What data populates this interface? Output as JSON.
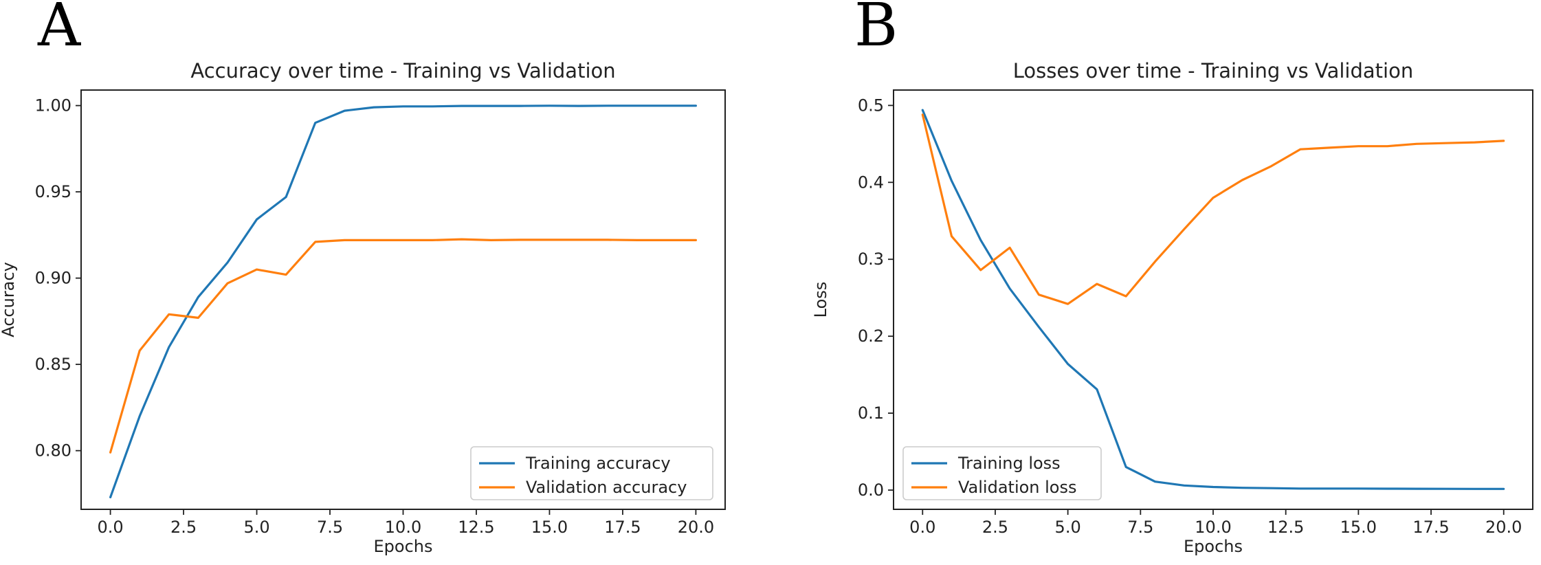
{
  "panels": [
    "A",
    "B"
  ],
  "chart_data": [
    {
      "type": "line",
      "title": "Accuracy over time - Training vs Validation",
      "xlabel": "Epochs",
      "ylabel": "Accuracy",
      "xlim": [
        -1,
        21
      ],
      "ylim": [
        0.766,
        1.009
      ],
      "xticks": [
        0,
        2.5,
        5,
        7.5,
        10,
        12.5,
        15,
        17.5,
        20
      ],
      "xtick_labels": [
        "0.0",
        "2.5",
        "5.0",
        "7.5",
        "10.0",
        "12.5",
        "15.0",
        "17.5",
        "20.0"
      ],
      "yticks": [
        0.8,
        0.85,
        0.9,
        0.95,
        1.0
      ],
      "ytick_labels": [
        "0.80",
        "0.85",
        "0.90",
        "0.95",
        "1.00"
      ],
      "legend_position": "lower-right",
      "grid": false,
      "x": [
        0,
        1,
        2,
        3,
        4,
        5,
        6,
        7,
        8,
        9,
        10,
        11,
        12,
        13,
        14,
        15,
        16,
        17,
        18,
        19,
        20
      ],
      "series": [
        {
          "name": "Training accuracy",
          "color": "#1f77b4",
          "values": [
            0.773,
            0.82,
            0.86,
            0.889,
            0.909,
            0.934,
            0.947,
            0.99,
            0.997,
            0.999,
            0.9995,
            0.9995,
            0.9998,
            0.9998,
            0.9998,
            0.9999,
            0.9998,
            0.9999,
            0.9999,
            0.9999,
            0.9999
          ]
        },
        {
          "name": "Validation accuracy",
          "color": "#ff7f0e",
          "values": [
            0.799,
            0.858,
            0.879,
            0.877,
            0.897,
            0.905,
            0.902,
            0.921,
            0.922,
            0.922,
            0.922,
            0.922,
            0.9225,
            0.922,
            0.9222,
            0.9222,
            0.9222,
            0.9222,
            0.922,
            0.922,
            0.922
          ]
        }
      ]
    },
    {
      "type": "line",
      "title": "Losses over time - Training vs Validation",
      "xlabel": "Epochs",
      "ylabel": "Loss",
      "xlim": [
        -1,
        21
      ],
      "ylim": [
        -0.025,
        0.52
      ],
      "xticks": [
        0,
        2.5,
        5,
        7.5,
        10,
        12.5,
        15,
        17.5,
        20
      ],
      "xtick_labels": [
        "0.0",
        "2.5",
        "5.0",
        "7.5",
        "10.0",
        "12.5",
        "15.0",
        "17.5",
        "20.0"
      ],
      "yticks": [
        0.0,
        0.1,
        0.2,
        0.3,
        0.4,
        0.5
      ],
      "ytick_labels": [
        "0.0",
        "0.1",
        "0.2",
        "0.3",
        "0.4",
        "0.5"
      ],
      "legend_position": "lower-left",
      "grid": false,
      "x": [
        0,
        1,
        2,
        3,
        4,
        5,
        6,
        7,
        8,
        9,
        10,
        11,
        12,
        13,
        14,
        15,
        16,
        17,
        18,
        19,
        20
      ],
      "series": [
        {
          "name": "Training loss",
          "color": "#1f77b4",
          "values": [
            0.494,
            0.402,
            0.325,
            0.262,
            0.212,
            0.164,
            0.131,
            0.03,
            0.011,
            0.006,
            0.004,
            0.003,
            0.0025,
            0.002,
            0.002,
            0.002,
            0.0018,
            0.0017,
            0.0016,
            0.0015,
            0.0015
          ]
        },
        {
          "name": "Validation loss",
          "color": "#ff7f0e",
          "values": [
            0.488,
            0.33,
            0.286,
            0.315,
            0.254,
            0.242,
            0.268,
            0.252,
            0.297,
            0.339,
            0.38,
            0.403,
            0.421,
            0.443,
            0.445,
            0.447,
            0.447,
            0.45,
            0.451,
            0.452,
            0.454
          ]
        }
      ]
    }
  ]
}
